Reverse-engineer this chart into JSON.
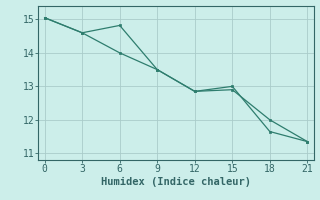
{
  "line1_x": [
    0,
    3,
    6,
    9,
    12,
    15,
    18,
    21
  ],
  "line1_y": [
    15.05,
    14.6,
    14.0,
    13.5,
    12.85,
    12.9,
    12.0,
    11.35
  ],
  "line2_x": [
    0,
    3,
    6,
    9,
    12,
    15,
    18,
    21
  ],
  "line2_y": [
    15.05,
    14.6,
    14.82,
    13.5,
    12.85,
    13.0,
    11.65,
    11.35
  ],
  "line_color": "#2e7d6e",
  "bg_color": "#cceeea",
  "grid_color": "#aaccca",
  "axis_color": "#336666",
  "spine_color": "#336666",
  "xlabel": "Humidex (Indice chaleur)",
  "xlim": [
    -0.5,
    21.5
  ],
  "ylim": [
    10.8,
    15.4
  ],
  "xticks": [
    0,
    3,
    6,
    9,
    12,
    15,
    18,
    21
  ],
  "yticks": [
    11,
    12,
    13,
    14,
    15
  ],
  "xlabel_fontsize": 7.5,
  "tick_fontsize": 7
}
